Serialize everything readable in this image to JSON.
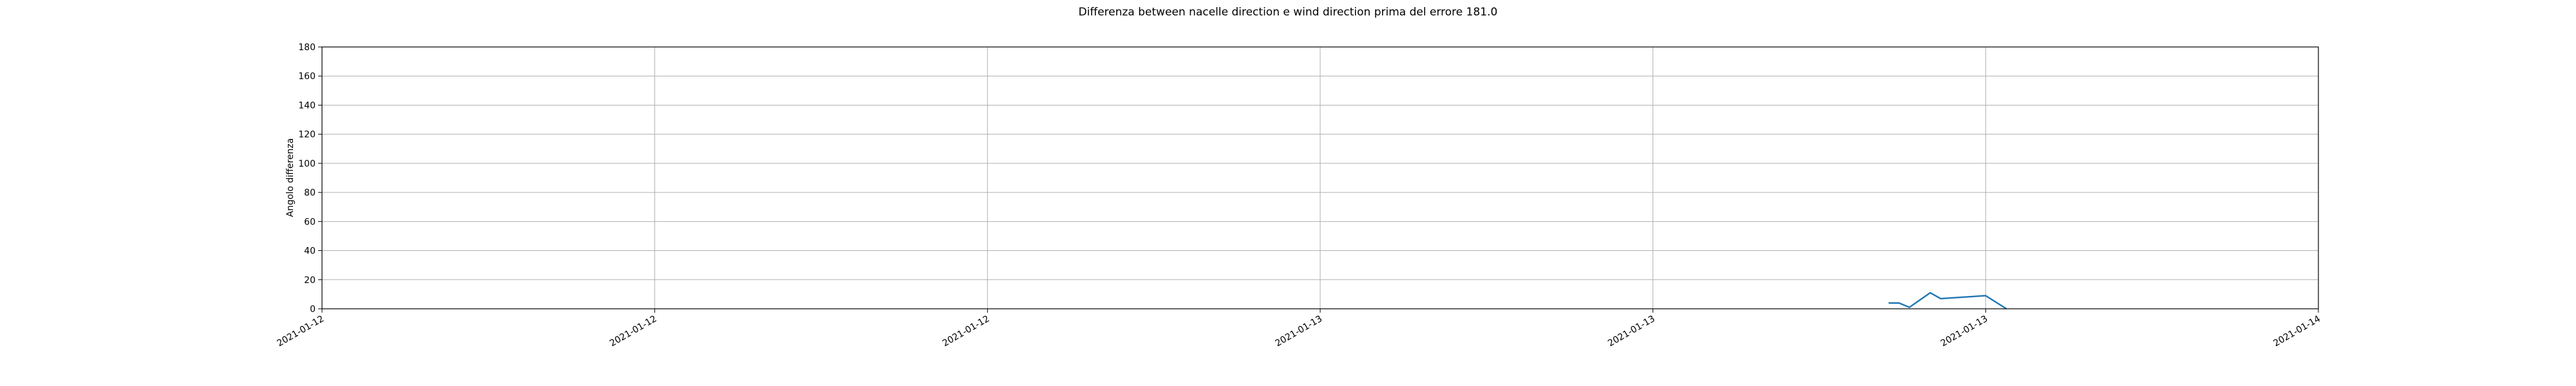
{
  "chart_data": {
    "type": "line",
    "title": "Differenza between nacelle direction e wind direction prima del errore 181.0",
    "xlabel": "",
    "ylabel": "Angolo differenza",
    "ylim": [
      0,
      180
    ],
    "yticks": [
      0,
      20,
      40,
      60,
      80,
      100,
      120,
      140,
      160,
      180
    ],
    "xlim": [
      "2021-01-12T00:00",
      "2021-01-14T00:00"
    ],
    "xticks": [
      {
        "value": "2021-01-12T00:00",
        "label": "2021-01-12"
      },
      {
        "value": "2021-01-12T08:00",
        "label": "2021-01-12"
      },
      {
        "value": "2021-01-12T16:00",
        "label": "2021-01-12"
      },
      {
        "value": "2021-01-13T00:00",
        "label": "2021-01-13"
      },
      {
        "value": "2021-01-13T08:00",
        "label": "2021-01-13"
      },
      {
        "value": "2021-01-13T16:00",
        "label": "2021-01-13"
      },
      {
        "value": "2021-01-14T00:00",
        "label": "2021-01-14"
      }
    ],
    "grid": true,
    "series": [
      {
        "color": "#1f77b4",
        "points": [
          {
            "x": "2021-01-13T13:40",
            "y": 4
          },
          {
            "x": "2021-01-13T13:55",
            "y": 4
          },
          {
            "x": "2021-01-13T14:10",
            "y": 1
          },
          {
            "x": "2021-01-13T14:25",
            "y": 6
          },
          {
            "x": "2021-01-13T14:40",
            "y": 11
          },
          {
            "x": "2021-01-13T14:55",
            "y": 7
          },
          {
            "x": "2021-01-13T16:00",
            "y": 9
          },
          {
            "x": "2021-01-13T16:30",
            "y": 0
          }
        ]
      }
    ]
  }
}
